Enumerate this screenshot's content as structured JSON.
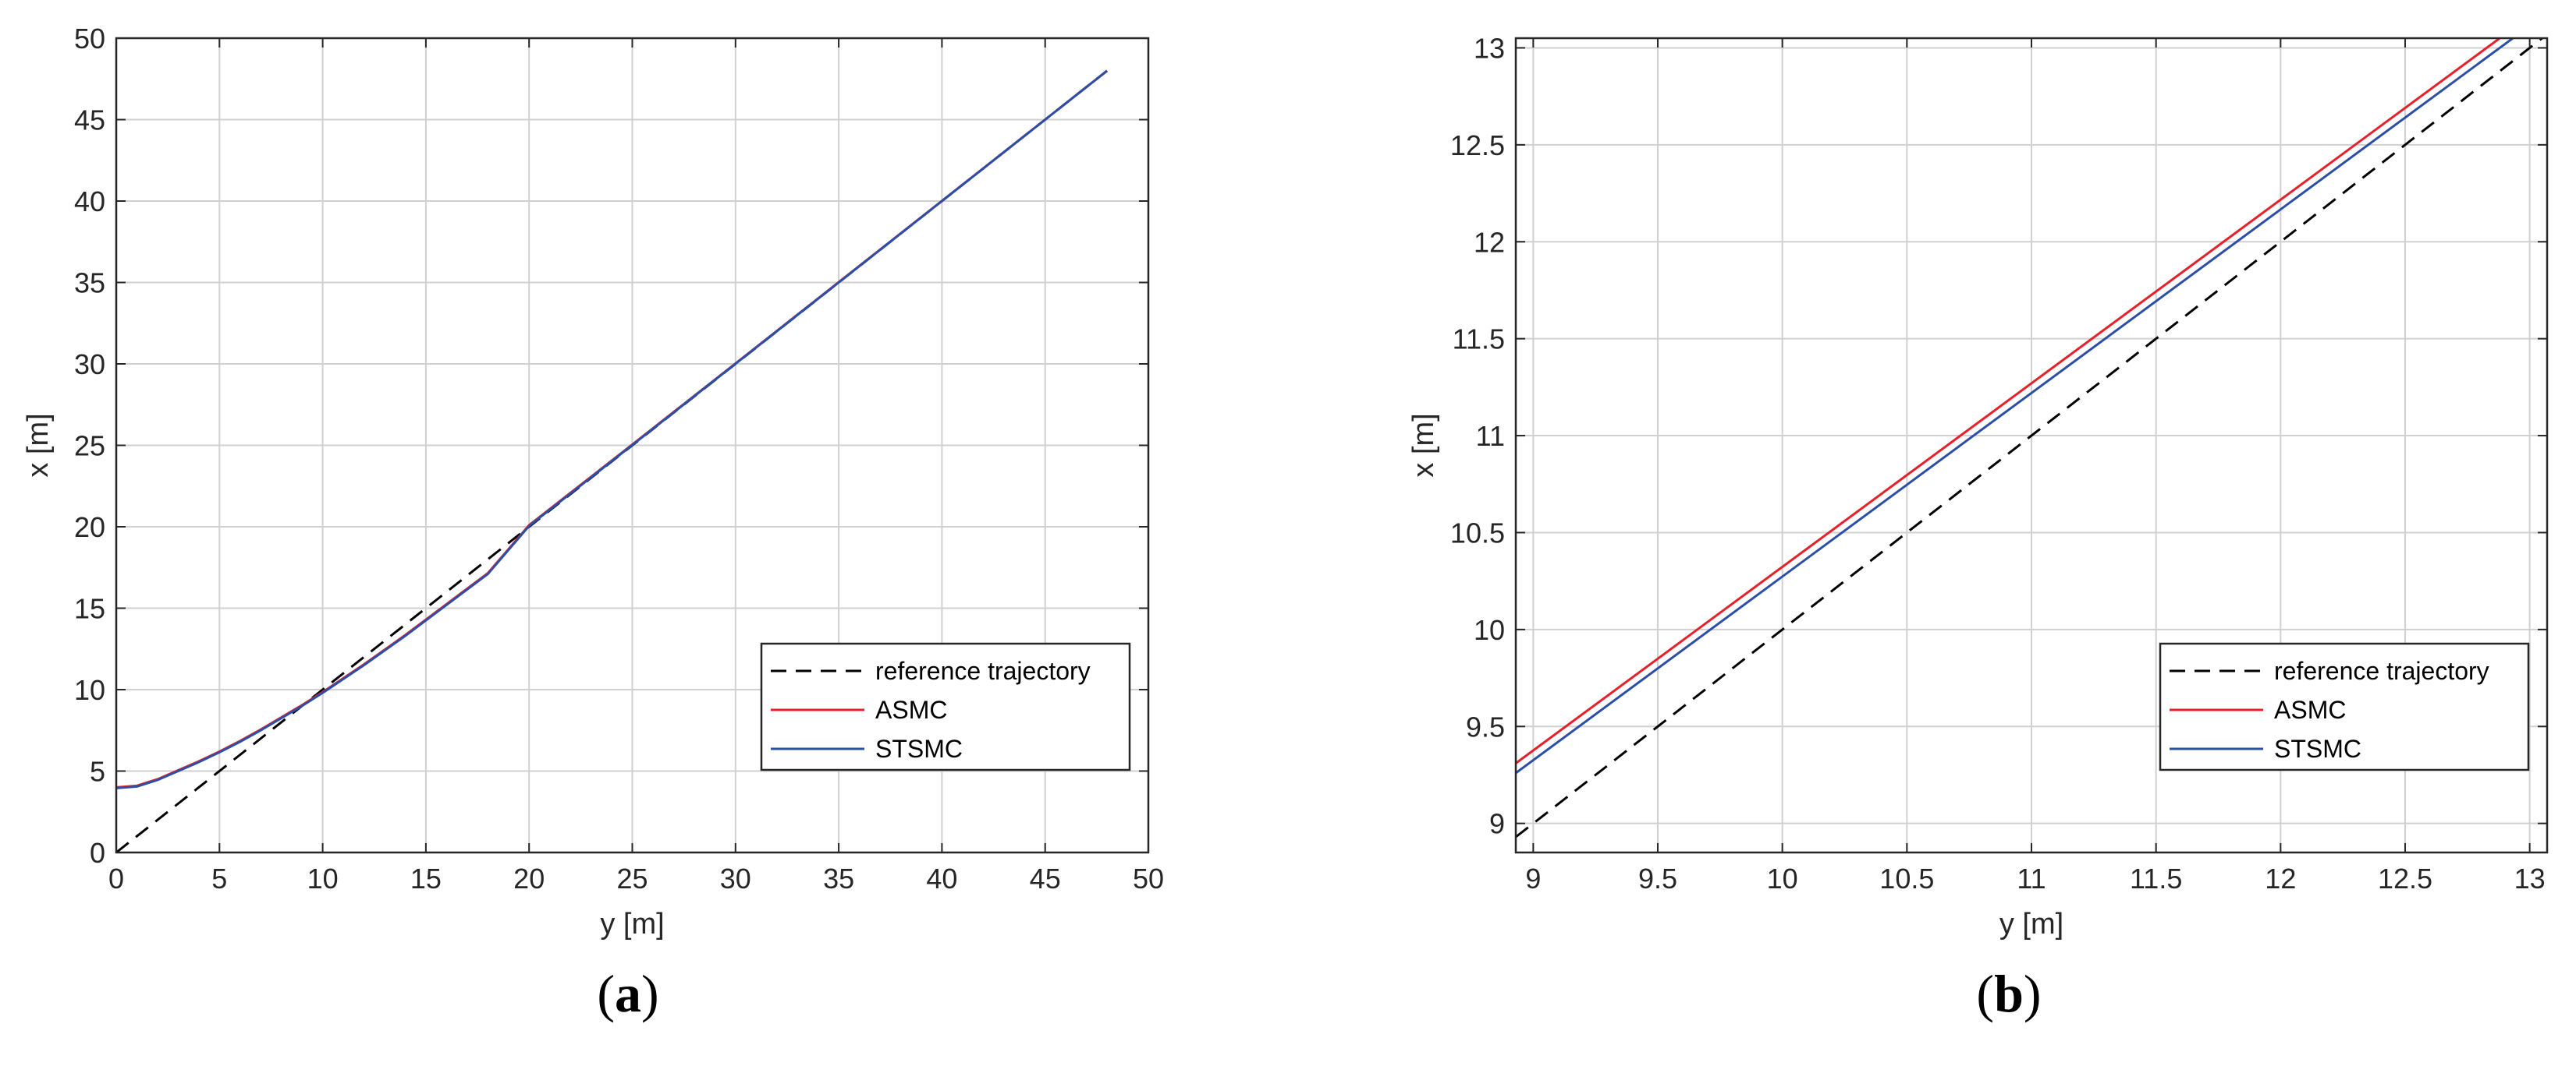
{
  "chart_data": [
    {
      "type": "line",
      "panel_label": "(a)",
      "xlabel": "y [m]",
      "ylabel": "x [m]",
      "xlim": [
        0,
        50
      ],
      "ylim": [
        0,
        50
      ],
      "xticks": [
        0,
        5,
        10,
        15,
        20,
        25,
        30,
        35,
        40,
        45,
        50
      ],
      "yticks": [
        0,
        5,
        10,
        15,
        20,
        25,
        30,
        35,
        40,
        45,
        50
      ],
      "xtick_labels": [
        "0",
        "5",
        "10",
        "15",
        "20",
        "25",
        "30",
        "35",
        "40",
        "45",
        "50"
      ],
      "ytick_labels": [
        "0",
        "5",
        "10",
        "15",
        "20",
        "25",
        "30",
        "35",
        "40",
        "45",
        "50"
      ],
      "grid": true,
      "legend_position": "bottom-right",
      "series": [
        {
          "name": "reference trajectory",
          "color": "#000000",
          "dash": "dashed",
          "x": [
            0,
            48
          ],
          "y": [
            0,
            48
          ]
        },
        {
          "name": "ASMC",
          "color": "#e8202a",
          "dash": "solid",
          "x": [
            0,
            1,
            2,
            3,
            4,
            5,
            6,
            7,
            8,
            9,
            10,
            11,
            12,
            14,
            16,
            18,
            20,
            25,
            30,
            35,
            40,
            45,
            48
          ],
          "y": [
            4.0,
            4.1,
            4.5,
            5.05,
            5.6,
            6.2,
            6.85,
            7.55,
            8.3,
            9.05,
            9.85,
            10.7,
            11.55,
            13.35,
            15.25,
            17.15,
            20.1,
            25.05,
            30.03,
            35.02,
            40.01,
            45.0,
            48.0
          ]
        },
        {
          "name": "STSMC",
          "color": "#2b4fa8",
          "dash": "solid",
          "x": [
            0,
            1,
            2,
            3,
            4,
            5,
            6,
            7,
            8,
            9,
            10,
            11,
            12,
            14,
            16,
            18,
            20,
            25,
            30,
            35,
            40,
            45,
            48
          ],
          "y": [
            3.95,
            4.05,
            4.45,
            5.0,
            5.55,
            6.15,
            6.8,
            7.5,
            8.25,
            9.0,
            9.8,
            10.65,
            11.5,
            13.3,
            15.2,
            17.1,
            20.05,
            25.02,
            30.01,
            35.0,
            40.0,
            45.0,
            48.0
          ]
        }
      ]
    },
    {
      "type": "line",
      "panel_label": "(b)",
      "xlabel": "y [m]",
      "ylabel": "x [m]",
      "xlim": [
        8.93,
        13.07
      ],
      "ylim": [
        8.85,
        13.05
      ],
      "xticks": [
        9,
        9.5,
        10,
        10.5,
        11,
        11.5,
        12,
        12.5,
        13
      ],
      "yticks": [
        9,
        9.5,
        10,
        10.5,
        11,
        11.5,
        12,
        12.5,
        13
      ],
      "xtick_labels": [
        "9",
        "9.5",
        "10",
        "10.5",
        "11",
        "11.5",
        "12",
        "12.5",
        "13"
      ],
      "ytick_labels": [
        "9",
        "9.5",
        "10",
        "10.5",
        "11",
        "11.5",
        "12",
        "12.5",
        "13"
      ],
      "grid": true,
      "legend_position": "bottom-right",
      "series": [
        {
          "name": "reference trajectory",
          "color": "#000000",
          "dash": "dashed",
          "x": [
            8.93,
            13.07
          ],
          "y": [
            8.93,
            13.07
          ]
        },
        {
          "name": "ASMC",
          "color": "#e8202a",
          "dash": "solid",
          "x": [
            8.93,
            13.07
          ],
          "y": [
            9.31,
            13.23
          ]
        },
        {
          "name": "STSMC",
          "color": "#2b4fa8",
          "dash": "solid",
          "x": [
            8.93,
            13.07
          ],
          "y": [
            9.26,
            13.18
          ]
        }
      ]
    }
  ]
}
